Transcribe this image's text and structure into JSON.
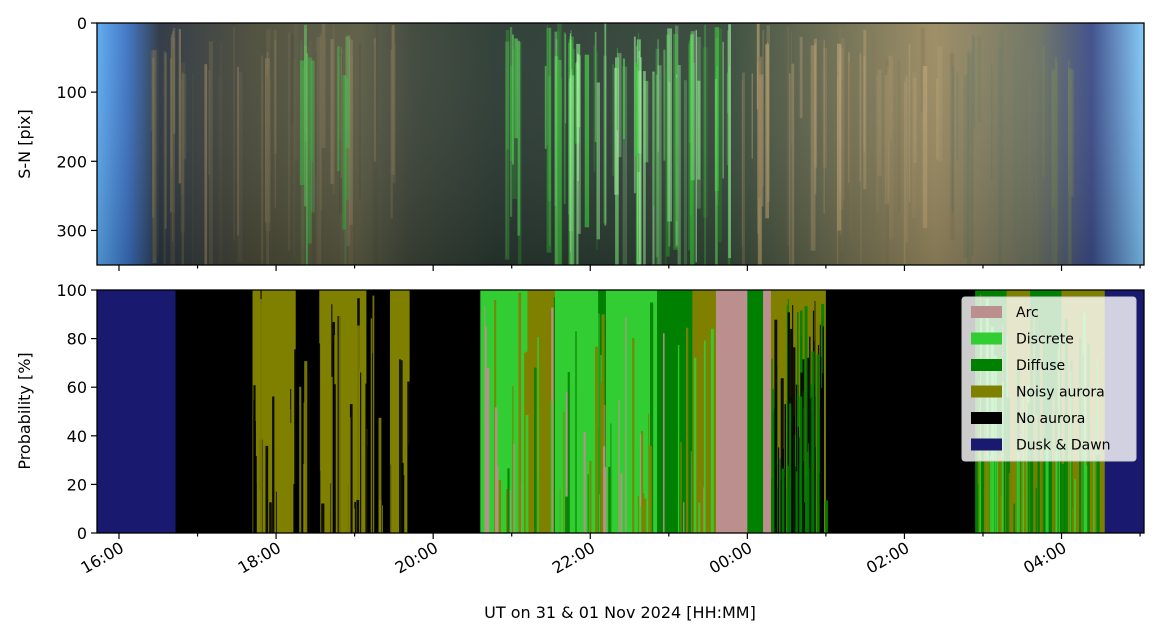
{
  "chart_data": [
    {
      "type": "heatmap",
      "description_kind": "keogram",
      "ylabel": "S-N [pix]",
      "ylim": [
        350,
        0
      ],
      "yticks": [
        0,
        100,
        200,
        300
      ],
      "ytick_labels": [
        "0",
        "100",
        "200",
        "300"
      ],
      "xlim_hours": [
        15.72,
        29.05
      ],
      "grid": false
    },
    {
      "type": "area",
      "stacked": true,
      "xlabel": "UT on 31 & 01 Nov 2024 [HH:MM]",
      "ylabel": "Probability [%]",
      "ylim": [
        0,
        100
      ],
      "yticks": [
        0,
        20,
        40,
        60,
        80,
        100
      ],
      "ytick_labels": [
        "0",
        "20",
        "40",
        "60",
        "80",
        "100"
      ],
      "xticks_hours": [
        16,
        18,
        20,
        22,
        24,
        26,
        28
      ],
      "xtick_labels": [
        "16:00",
        "18:00",
        "20:00",
        "22:00",
        "00:00",
        "02:00",
        "04:00"
      ],
      "legend_position": "top-right",
      "grid": false,
      "series": [
        {
          "name": "Arc",
          "color": "#bc8f8f"
        },
        {
          "name": "Discrete",
          "color": "#32cd32"
        },
        {
          "name": "Diffuse",
          "color": "#008000"
        },
        {
          "name": "Noisy aurora",
          "color": "#808000"
        },
        {
          "name": "No aurora",
          "color": "#000000"
        },
        {
          "name": "Dusk & Dawn",
          "color": "#191970"
        }
      ],
      "segments": [
        {
          "start": 15.72,
          "end": 16.72,
          "class": "Dusk & Dawn"
        },
        {
          "start": 16.72,
          "end": 17.7,
          "class": "No aurora"
        },
        {
          "start": 17.7,
          "end": 18.25,
          "class": "Noisy aurora"
        },
        {
          "start": 18.25,
          "end": 18.55,
          "class": "No aurora"
        },
        {
          "start": 18.55,
          "end": 19.15,
          "class": "Noisy aurora"
        },
        {
          "start": 19.15,
          "end": 19.45,
          "class": "No aurora"
        },
        {
          "start": 19.45,
          "end": 19.7,
          "class": "Noisy aurora"
        },
        {
          "start": 19.7,
          "end": 20.6,
          "class": "No aurora"
        },
        {
          "start": 20.6,
          "end": 21.2,
          "class": "Discrete"
        },
        {
          "start": 21.2,
          "end": 21.55,
          "class": "Noisy aurora"
        },
        {
          "start": 21.55,
          "end": 22.1,
          "class": "Discrete"
        },
        {
          "start": 22.1,
          "end": 22.1,
          "class": "Discrete"
        },
        {
          "start": 22.1,
          "end": 22.2,
          "class": "Diffuse"
        },
        {
          "start": 22.2,
          "end": 22.85,
          "class": "Discrete"
        },
        {
          "start": 22.85,
          "end": 23.3,
          "class": "Diffuse"
        },
        {
          "start": 23.3,
          "end": 23.6,
          "class": "Noisy aurora"
        },
        {
          "start": 23.6,
          "end": 24.0,
          "class": "Arc"
        },
        {
          "start": 24.0,
          "end": 24.2,
          "class": "Diffuse"
        },
        {
          "start": 24.2,
          "end": 24.3,
          "class": "Arc"
        },
        {
          "start": 24.3,
          "end": 25.0,
          "class": "Noisy aurora"
        },
        {
          "start": 25.0,
          "end": 26.9,
          "class": "No aurora"
        },
        {
          "start": 26.9,
          "end": 27.3,
          "class": "Diffuse"
        },
        {
          "start": 27.3,
          "end": 27.6,
          "class": "Noisy aurora"
        },
        {
          "start": 27.6,
          "end": 28.0,
          "class": "Diffuse"
        },
        {
          "start": 28.0,
          "end": 28.55,
          "class": "Noisy aurora"
        },
        {
          "start": 28.55,
          "end": 29.05,
          "class": "Dusk & Dawn"
        }
      ]
    }
  ]
}
